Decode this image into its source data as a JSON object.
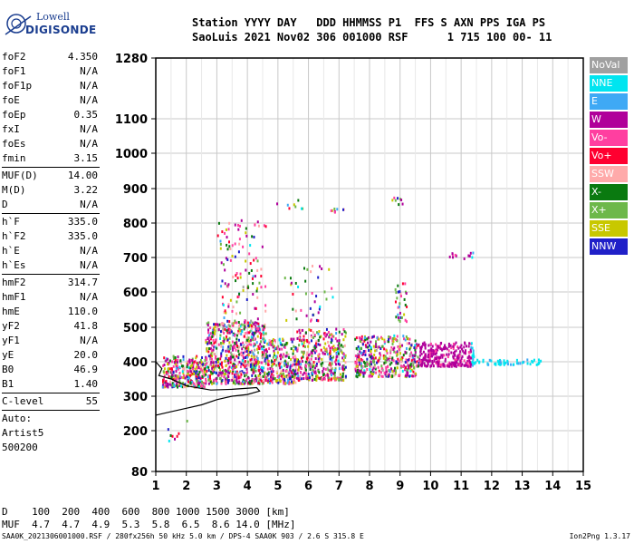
{
  "logo": {
    "line1": "Lowell",
    "line2": "DIGISONDE"
  },
  "header": {
    "line1": "Station YYYY DAY   DDD HHMMSS P1  FFS S AXN PPS IGA PS",
    "line2": "SaoLuis 2021 Nov02 306 001000 RSF      1 715 100 00- 11"
  },
  "params": [
    {
      "label": "foF2",
      "value": "4.350"
    },
    {
      "label": "foF1",
      "value": "N/A"
    },
    {
      "label": "foF1p",
      "value": "N/A"
    },
    {
      "label": "foE",
      "value": "N/A"
    },
    {
      "label": "foEp",
      "value": "0.35"
    },
    {
      "label": "fxI",
      "value": "N/A"
    },
    {
      "label": "foEs",
      "value": "N/A"
    },
    {
      "label": "fmin",
      "value": "3.15"
    },
    {
      "sep": true
    },
    {
      "label": "MUF(D)",
      "value": "14.00"
    },
    {
      "label": "M(D)",
      "value": "3.22"
    },
    {
      "label": "D",
      "value": "N/A"
    },
    {
      "sep": true
    },
    {
      "label": "h`F",
      "value": "335.0"
    },
    {
      "label": "h`F2",
      "value": "335.0"
    },
    {
      "label": "h`E",
      "value": "N/A"
    },
    {
      "label": "h`Es",
      "value": "N/A"
    },
    {
      "sep": true
    },
    {
      "label": "hmF2",
      "value": "314.7"
    },
    {
      "label": "hmF1",
      "value": "N/A"
    },
    {
      "label": "hmE",
      "value": "110.0"
    },
    {
      "label": "yF2",
      "value": "41.8"
    },
    {
      "label": "yF1",
      "value": "N/A"
    },
    {
      "label": "yE",
      "value": "20.0"
    },
    {
      "label": "B0",
      "value": "46.9"
    },
    {
      "label": "B1",
      "value": "1.40"
    },
    {
      "sep": true
    },
    {
      "label": "C-level",
      "value": "55"
    },
    {
      "sep": true
    },
    {
      "text": "Auto:"
    },
    {
      "text": "Artist5"
    },
    {
      "text": "500200"
    }
  ],
  "legend": [
    {
      "label": "NoVal",
      "color": "#a0a0a0"
    },
    {
      "label": "NNE",
      "color": "#00e5f0"
    },
    {
      "label": "E",
      "color": "#3fa9f5"
    },
    {
      "label": "W",
      "color": "#b0009a"
    },
    {
      "label": "Vo-",
      "color": "#ff3fa0"
    },
    {
      "label": "Vo+",
      "color": "#ff0030"
    },
    {
      "label": "SSW",
      "color": "#ffaaaa"
    },
    {
      "label": "X-",
      "color": "#0a7a10"
    },
    {
      "label": "X+",
      "color": "#6db84a"
    },
    {
      "label": "SSE",
      "color": "#c8c800"
    },
    {
      "label": "NNW",
      "color": "#2020c8"
    }
  ],
  "muf_table": {
    "line1": "D    100  200  400  600  800 1000 1500 3000 [km]",
    "line2": "MUF  4.7  4.7  4.9  5.3  5.8  6.5  8.6 14.0 [MHz]"
  },
  "footer": {
    "left": "SAA0K_2021306001000.RSF / 280fx256h 50 kHz 5.0 km / DPS-4 SAA0K 903 / 2.6 S 315.8 E",
    "right": "Ion2Png 1.3.17"
  },
  "chart_data": {
    "type": "scatter",
    "x_range": [
      1,
      15
    ],
    "y_range": [
      80,
      1280
    ],
    "x_ticks": [
      1,
      2,
      3,
      4,
      5,
      6,
      7,
      8,
      9,
      10,
      11,
      12,
      13,
      14,
      15
    ],
    "y_ticks": [
      80,
      200,
      300,
      400,
      500,
      600,
      700,
      800,
      900,
      1000,
      1100,
      1280
    ],
    "grid": true,
    "trace": [
      [
        1.0,
        245
      ],
      [
        1.5,
        255
      ],
      [
        2.0,
        265
      ],
      [
        2.5,
        275
      ],
      [
        3.0,
        290
      ],
      [
        3.5,
        300
      ],
      [
        4.0,
        305
      ],
      [
        4.4,
        315
      ],
      [
        4.3,
        325
      ],
      [
        3.5,
        320
      ],
      [
        2.8,
        318
      ],
      [
        2.0,
        330
      ],
      [
        1.5,
        350
      ],
      [
        1.1,
        360
      ],
      [
        1.2,
        380
      ],
      [
        1.0,
        400
      ]
    ],
    "clusters": [
      {
        "x": [
          1.2,
          2.6
        ],
        "y": [
          330,
          420
        ],
        "n": 300
      },
      {
        "x": [
          2.6,
          4.6
        ],
        "y": [
          340,
          520
        ],
        "n": 700
      },
      {
        "x": [
          4.6,
          5.6
        ],
        "y": [
          340,
          470
        ],
        "n": 250
      },
      {
        "x": [
          5.6,
          7.2
        ],
        "y": [
          350,
          500
        ],
        "n": 350
      },
      {
        "x": [
          7.5,
          9.5
        ],
        "y": [
          360,
          480
        ],
        "n": 400
      },
      {
        "x": [
          9.5,
          11.4
        ],
        "y": [
          390,
          460
        ],
        "n": 300
      },
      {
        "x": [
          11.2,
          13.6
        ],
        "y": [
          395,
          410
        ],
        "n": 60
      },
      {
        "x": [
          3.0,
          4.6
        ],
        "y": [
          520,
          820
        ],
        "n": 120
      },
      {
        "x": [
          5.2,
          6.8
        ],
        "y": [
          520,
          680
        ],
        "n": 40
      },
      {
        "x": [
          8.8,
          9.2
        ],
        "y": [
          520,
          630
        ],
        "n": 30
      },
      {
        "x": [
          10.5,
          11.4
        ],
        "y": [
          700,
          720
        ],
        "n": 12
      },
      {
        "x": [
          4.6,
          5.8
        ],
        "y": [
          840,
          870
        ],
        "n": 8
      },
      {
        "x": [
          6.6,
          7.2
        ],
        "y": [
          835,
          845
        ],
        "n": 8
      },
      {
        "x": [
          8.7,
          9.1
        ],
        "y": [
          855,
          880
        ],
        "n": 8
      },
      {
        "x": [
          1.2,
          2.0
        ],
        "y": [
          170,
          250
        ],
        "n": 8
      }
    ]
  }
}
